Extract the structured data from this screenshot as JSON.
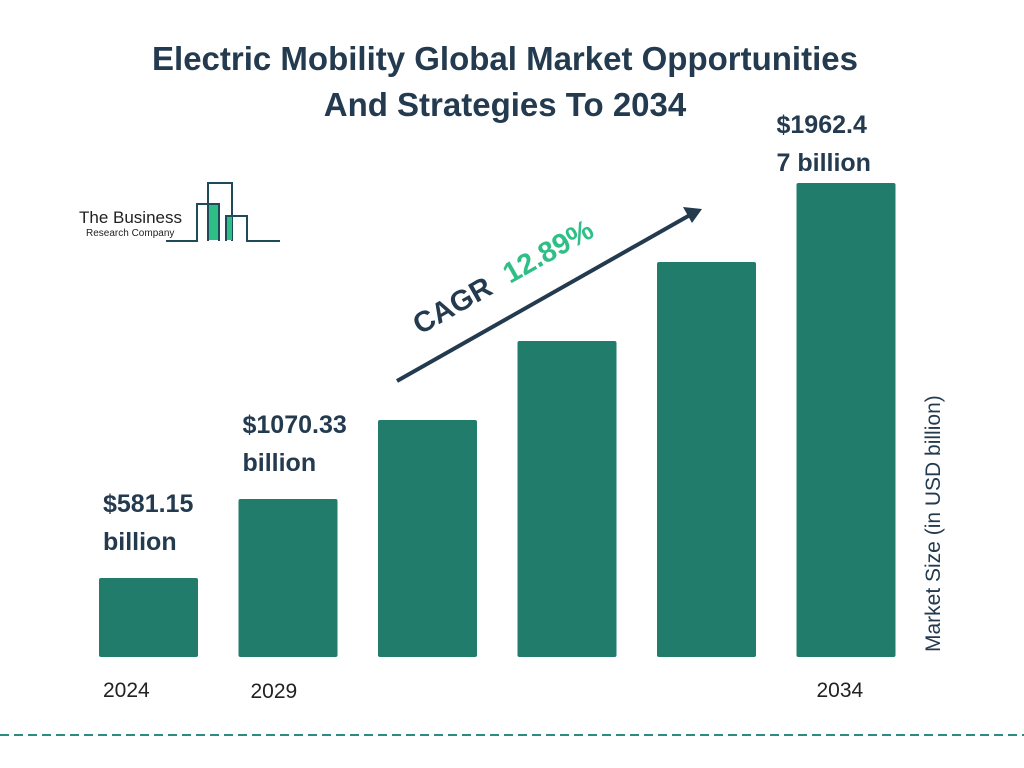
{
  "chart_data": {
    "type": "bar",
    "title": "Electric Mobility Global Market Opportunities And Strategies To 2034",
    "title_lines": [
      "Electric Mobility Global Market Opportunities",
      "And Strategies To 2034"
    ],
    "ylabel": "Market Size (in USD billion)",
    "categories": [
      "2024",
      "2029",
      "",
      "",
      "",
      "2034"
    ],
    "values": [
      581.15,
      1070.33,
      null,
      null,
      null,
      1962.47
    ],
    "data_labels": [
      [
        "$581.15",
        "billion"
      ],
      [
        "$1070.33",
        "billion"
      ],
      null,
      null,
      null,
      [
        "$1962.4",
        "7 billion"
      ]
    ],
    "annotation": {
      "prefix": "CAGR",
      "value": "12.89%"
    },
    "grid": false,
    "legend": "none",
    "colors": {
      "bar": "#217c6b",
      "text": "#233a4f",
      "cagr": "#2fbf86",
      "dashed_line": "#2a8c82"
    }
  },
  "logo": {
    "line1": "The Business",
    "line2": "Research Company"
  }
}
